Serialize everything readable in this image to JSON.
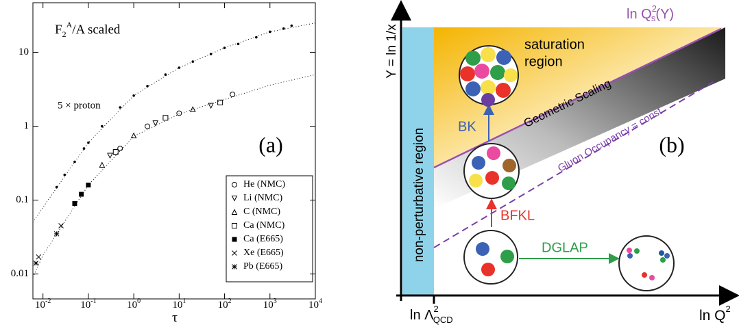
{
  "chart_data": {
    "type": "scatter",
    "title": {
      "base": "F",
      "sub": "2",
      "sup": "A",
      "rest": "/A  scaled"
    },
    "panel_label": "(a)",
    "xlabel": "τ",
    "log_x": true,
    "log_y": true,
    "xlim": [
      0.006,
      10000
    ],
    "ylim": [
      0.0046,
      47
    ],
    "xticks": [
      {
        "value": 0.01,
        "label": "10",
        "exponent": "-2"
      },
      {
        "value": 0.1,
        "label": "10",
        "exponent": "-1"
      },
      {
        "value": 1,
        "label": "10",
        "exponent": "0"
      },
      {
        "value": 10,
        "label": "10",
        "exponent": "1"
      },
      {
        "value": 100,
        "label": "10",
        "exponent": "2"
      },
      {
        "value": 1000,
        "label": "10",
        "exponent": "3"
      },
      {
        "value": 10000,
        "label": "10",
        "exponent": "4"
      }
    ],
    "yticks": [
      0.01,
      0.1,
      1,
      10
    ],
    "series": [
      {
        "name": "5 × proton",
        "marker": "dot",
        "in_legend": false,
        "color": "#000000",
        "x": [
          0.02,
          0.03,
          0.05,
          0.08,
          0.1,
          0.2,
          0.5,
          1,
          2,
          5,
          10,
          20,
          50,
          100,
          200,
          500,
          1000,
          2000,
          3000
        ],
        "values": [
          0.15,
          0.22,
          0.33,
          0.5,
          0.6,
          1.0,
          1.8,
          2.6,
          3.5,
          5.0,
          6.2,
          7.5,
          9.5,
          11.5,
          13,
          16,
          19,
          21,
          23
        ]
      },
      {
        "name": "He (NMC)",
        "marker": "circle",
        "in_legend": true,
        "color": "#000000",
        "x": [
          0.5,
          2,
          10,
          150
        ],
        "values": [
          0.5,
          1.0,
          1.5,
          2.7
        ]
      },
      {
        "name": "Li (NMC)",
        "marker": "triangle-down",
        "in_legend": true,
        "color": "#000000",
        "x": [
          0.3,
          3,
          50
        ],
        "values": [
          0.4,
          1.1,
          1.9
        ]
      },
      {
        "name": "C (NMC)",
        "marker": "triangle-up",
        "in_legend": true,
        "color": "#000000",
        "x": [
          0.2,
          1,
          20
        ],
        "values": [
          0.3,
          0.75,
          1.7
        ]
      },
      {
        "name": "Ca (NMC)",
        "marker": "square",
        "in_legend": true,
        "color": "#000000",
        "x": [
          0.4,
          5,
          80
        ],
        "values": [
          0.45,
          1.3,
          2.1
        ]
      },
      {
        "name": "Ca (E665)",
        "marker": "square-filled",
        "in_legend": true,
        "color": "#000000",
        "x": [
          0.05,
          0.07,
          0.1
        ],
        "values": [
          0.09,
          0.12,
          0.16
        ]
      },
      {
        "name": "Xe (E665)",
        "marker": "cross",
        "in_legend": true,
        "color": "#000000",
        "x": [
          0.008,
          0.025
        ],
        "values": [
          0.017,
          0.045
        ]
      },
      {
        "name": "Pb (E665)",
        "marker": "asterisk",
        "in_legend": true,
        "color": "#000000",
        "x": [
          0.007,
          0.02
        ],
        "values": [
          0.014,
          0.035
        ]
      }
    ],
    "fit_curves": [
      {
        "x": [
          0.006,
          0.01,
          0.1,
          1,
          10,
          100,
          1000,
          10000
        ],
        "values": [
          0.05,
          0.08,
          0.6,
          2.6,
          6.2,
          11.5,
          19,
          25
        ]
      },
      {
        "x": [
          0.006,
          0.01,
          0.1,
          1,
          10,
          100,
          1000,
          10000
        ],
        "values": [
          0.009,
          0.018,
          0.16,
          0.73,
          1.47,
          2.3,
          3.6,
          5
        ]
      }
    ]
  },
  "diagram": {
    "y_axis_label": "Y = ln 1/x",
    "x_axis_label": {
      "base": "ln Q",
      "sup": "2"
    },
    "x_tick_label": {
      "base": "ln Λ",
      "sup": "2",
      "sub": "QCD"
    },
    "saturation_line_label": {
      "base": "ln Q",
      "sup": "2",
      "sub": "s",
      "rest": "(Y)"
    },
    "saturation_region": [
      "saturation",
      "region"
    ],
    "geometric_scaling": "Geometric Scaling",
    "gluon_occupancy": "Gluon Occupancy = const",
    "non_perturbative": "non-perturbative region",
    "bk": "BK",
    "bfkl": "BFKL",
    "dglap": "DGLAP",
    "panel_label": "(b)"
  }
}
